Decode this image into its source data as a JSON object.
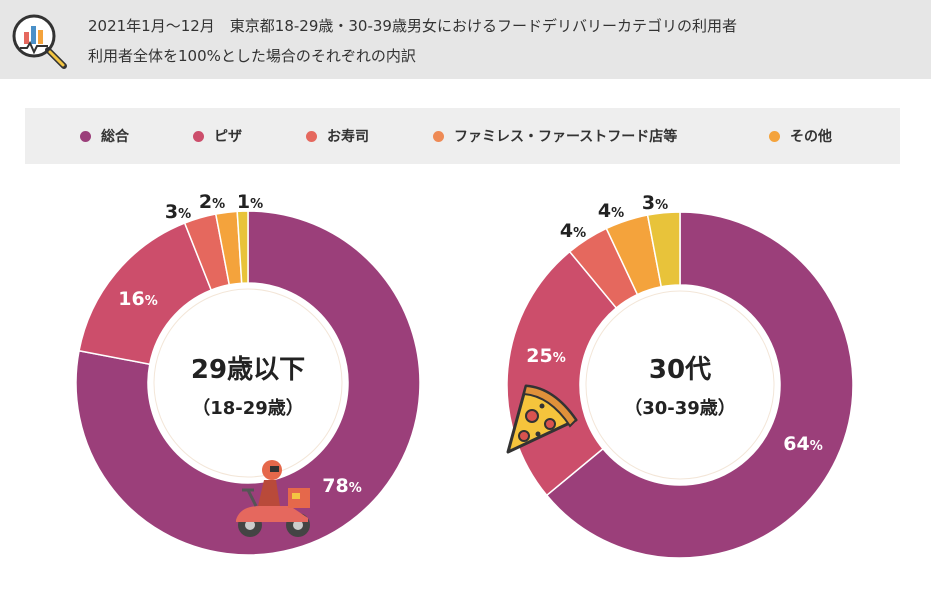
{
  "header": {
    "line1": "2021年1月～12月　東京都18-29歳・30-39歳男女におけるフードデリバリーカテゴリの利用者",
    "line2": "利用者全体を100%とした場合のそれぞれの内訳",
    "icon": "magnifier-chart-icon"
  },
  "legend": {
    "items": [
      {
        "label": "総合",
        "color": "#9b3f7a"
      },
      {
        "label": "ピザ",
        "color": "#cc4e6b"
      },
      {
        "label": "お寿司",
        "color": "#e5685e"
      },
      {
        "label": "ファミレス・ファーストフード店等",
        "color": "#ee8a55"
      },
      {
        "label": "その他",
        "color": "#f4a33c"
      }
    ]
  },
  "chart_data": [
    {
      "type": "donut",
      "center_title": "29歳以下",
      "center_sub": "（18-29歳）",
      "unit": "%",
      "series": [
        {
          "name": "総合",
          "value": 78,
          "color": "#9b3f7a"
        },
        {
          "name": "ピザ",
          "value": 16,
          "color": "#cc4e6b"
        },
        {
          "name": "お寿司",
          "value": 3,
          "color": "#e5685e"
        },
        {
          "name": "ファミレス・ファーストフード店等",
          "value": 2,
          "color": "#f4a33c"
        },
        {
          "name": "その他",
          "value": 1,
          "color": "#e8c33a"
        }
      ],
      "decoration_icon": "scooter-delivery-icon"
    },
    {
      "type": "donut",
      "center_title": "30代",
      "center_sub": "（30-39歳）",
      "unit": "%",
      "series": [
        {
          "name": "総合",
          "value": 64,
          "color": "#9b3f7a"
        },
        {
          "name": "ピザ",
          "value": 25,
          "color": "#cc4e6b"
        },
        {
          "name": "お寿司",
          "value": 4,
          "color": "#e5685e"
        },
        {
          "name": "ファミレス・ファーストフード店等",
          "value": 4,
          "color": "#f4a33c"
        },
        {
          "name": "その他",
          "value": 3,
          "color": "#e8c33a"
        }
      ],
      "decoration_icon": "pizza-slice-icon"
    }
  ]
}
